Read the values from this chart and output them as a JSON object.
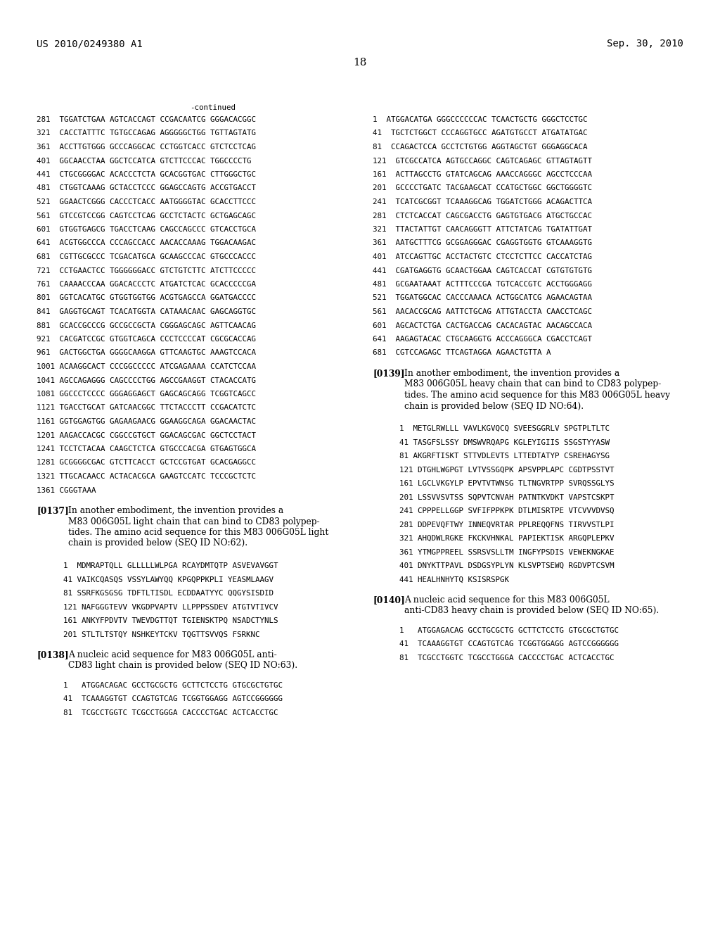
{
  "background_color": "#ffffff",
  "header_left": "US 2010/0249380 A1",
  "header_right": "Sep. 30, 2010",
  "page_number": "18",
  "continued_label": "-continued",
  "left_sequences": [
    "281  TGGATCTGAA AGTCACCAGT CCGACAATCG GGGACACGGC",
    "321  CACCTATTTC TGTGCCAGAG AGGGGGCTGG TGTTAGTATG",
    "361  ACCTTGTGGG GCCCAGGCAC CCTGGTCACC GTCTCCTCAG",
    "401  GGCAACCTAA GGCTCCATCA GTCTTCCCAC TGGCCCCTG",
    "441  CTGCGGGGAC ACACCCTCTA GCACGGTGAC CTTGGGCTGC",
    "481  CTGGTCAAAG GCTACCTCCC GGAGCCAGTG ACCGTGACCT",
    "521  GGAACTCGGG CACCCTCACC AATGGGGTAC GCACCTTCCC",
    "561  GTCCGTCCGG CAGTCCTCAG GCCTCTACTC GCTGAGCAGC",
    "601  GTGGTGAGCG TGACCTCAAG CAGCCAGCCC GTCACCTGCA",
    "641  ACGTGGCCCA CCCAGCCACC AACACCAAAG TGGACAAGAC",
    "681  CGTTGCGCCC TCGACATGCA GCAAGCCCAC GTGCCCACCC",
    "721  CCTGAACTCC TGGGGGGACC GTCTGTCTTC ATCTTCCCCC",
    "761  CAAAACCCAA GGACACCCTC ATGATCTCAC GCACCCCCGA",
    "801  GGTCACATGC GTGGTGGTGG ACGTGAGCCA GGATGACCCC",
    "841  GAGGTGCAGT TCACATGGTA CATAAACAAC GAGCAGGTGC",
    "881  GCACCGCCCG GCCGCCGCTA CGGGAGCAGC AGTTCAACAG",
    "921  CACGATCCGC GTGGTCAGCA CCCTCCCCAT CGCGCACCAG",
    "961  GACTGGCTGA GGGGCAAGGA GTTCAAGTGC AAAGTCCACA",
    "1001 ACAAGGCACT CCCGGCCCCC ATCGAGAAAA CCATCTCCAA",
    "1041 AGCCAGAGGG CAGCCCCTGG AGCCGAAGGT CTACACCATG",
    "1081 GGCCCTCCCC GGGAGGAGCT GAGCAGCAGG TCGGTCAGCC",
    "1121 TGACCTGCAT GATCAACGGC TTCTACCCTT CCGACATCTC",
    "1161 GGTGGAGTGG GAGAAGAACG GGAAGGCAGA GGACAACTAC",
    "1201 AAGACCACGC CGGCCGTGCT GGACAGCGAC GGCTCCTACT",
    "1241 TCCTCTACAA CAAGCTCTCA GTGCCCACGA GTGAGTGGCA",
    "1281 GCGGGGCGAC GTCTTCACCT GCTCCGTGAT GCACGAGGCC",
    "1321 TTGCACAACC ACTACACGCA GAAGTCCATC TCCCGCTCTC",
    "1361 CGGGTAAA"
  ],
  "right_sequences_1": [
    "1  ATGGACATGA GGGCCCCCCAC TCAACTGCTG GGGCTCCTGC",
    "41  TGCTCTGGCT CCCAGGTGCC AGATGTGCCT ATGATATGAC",
    "81  CCAGACTCCA GCCTCTGTGG AGGTAGCTGT GGGAGGCACA",
    "121  GTCGCCATCA AGTGCCAGGC CAGTCAGAGC GTTAGTAGTT",
    "161  ACTTAGCCTG GTATCAGCAG AAACCAGGGC AGCCTCCCAA",
    "201  GCCCCTGATC TACGAAGCAT CCATGCTGGC GGCTGGGGTC",
    "241  TCATCGCGGT TCAAAGGCAG TGGATCTGGG ACAGACTTCA",
    "281  CTCTCACCAT CAGCGACCTG GAGTGTGACG ATGCTGCCAC",
    "321  TTACTATTGT CAACAGGGTT ATTCTATCAG TGATATTGAT",
    "361  AATGCTTTCG GCGGAGGGAC CGAGGTGGTG GTCAAAGGTG",
    "401  ATCCAGTTGC ACCTACTGTC CTCCTCTTCC CACCATCTAG",
    "441  CGATGAGGTG GCAACTGGAA CAGTCACCAT CGTGTGTGTG",
    "481  GCGAATAAAT ACTTTCCCGA TGTCACCGTC ACCTGGGAGG",
    "521  TGGATGGCAC CACCCAAACA ACTGGCATCG AGAACAGTAA",
    "561  AACACCGCAG AATTCTGCAG ATTGTACCTA CAACCTCAGC",
    "601  AGCACTCTGA CACTGACCAG CACACAGTAC AACAGCCACA",
    "641  AAGAGTACAC CTGCAAGGTG ACCCAGGGCA CGACCTCAGT",
    "681  CGTCCAGAGC TTCAGTAGGA AGAACTGTTA A"
  ],
  "paragraph_139_title": "[0139]",
  "paragraph_139_text": "In another embodiment, the invention provides a\nM83 006G05L heavy chain that can bind to CD83 polypep-\ntides. The amino acid sequence for this M83 006G05L heavy\nchain is provided below (SEQ ID NO:64).",
  "right_seq_64": [
    "1  METGLRWLLL VAVLKGVQCQ SVEESGGRLV SPGTPLTLTC",
    "41 TASGFSLSSY DMSWVRQAPG KGLEYIGIIS SSGSTYYASW",
    "81 AKGRFTISKT STTVDLEVTS LTTEDTATYP CSREHAGYSG",
    "121 DTGHLWGPGT LVTVSSGQPK APSVPPLAPC CGDTPSSTVT",
    "161 LGCLVKGYLP EPVTVTWNSG TLTNGVRTPP SVRQSSGLYS",
    "201 LSSVVSVTSS SQPVTCNVAH PATNTKVDKT VAPSTCSKPT",
    "241 CPPPELLGGP SVFIFPPKPK DTLMISRTPE VTCVVVDVSQ",
    "281 DDPEVQFTWY INNEQVRTAR PPLREQQFNS TIRVVSTLPI",
    "321 AHQDWLRGKE FKCKVHNKAL PAPIEKTISK ARGQPLEPKV",
    "361 YTMGPPREEL SSRSVSLLTM INGFYPSDIS VEWEKNGKAE",
    "401 DNYKTTPAVL DSDGSYPLYN KLSVPTSEWQ RGDVPTCSVM",
    "441 HEALHNHYTQ KSISRSPGK"
  ],
  "paragraph_140_title": "[0140]",
  "paragraph_140_text": "A nucleic acid sequence for this M83 006G05L\nanti-CD83 heavy chain is provided below (SEQ ID NO:65).",
  "right_seq_65_start": [
    "1   ATGGAGACAG GCCTGCGCTG GCTTCTCCTG GTGCGCTGTGC",
    "41  TCAAAGGTGT CCAGTGTCAG TCGGTGGAGG AGTCCGGGGGG",
    "81  TCGCCTGGTC TCGCCTGGGA CACCCCTGAC ACTCACCTGC"
  ],
  "paragraph_137_title": "[0137]",
  "paragraph_137_text": "In another embodiment, the invention provides a\nM83 006G05L light chain that can bind to CD83 polypep-\ntides. The amino acid sequence for this M83 006G05L light\nchain is provided below (SEQ ID NO:62).",
  "left_seq_62": [
    "1  MDMRAPTQLL GLLLLLWLPGA RCAYDMTQTP ASVEVAVGGT",
    "41 VAIKCQASQS VSSYLAWYQQ KPGQPPKPLI YEASMLAAGV",
    "81 SSRFKGSGSG TDFTLTISDL ECDDAATYYC QQGYSISDID",
    "121 NAFGGGTEVV VKGDPVAPTV LLPPPSSDEV ATGTVTIVCV",
    "161 ANKYFPDVTV TWEVDGTTQT TGIENSKTPQ NSADCTYNLS",
    "201 STLTLTSTQY NSHKEYTCKV TQGTTSVVQS FSRKNC"
  ],
  "paragraph_138_title": "[0138]",
  "paragraph_138_text": "A nucleic acid sequence for M83 006G05L anti-\nCD83 light chain is provided below (SEQ ID NO:63).",
  "left_seq_63_start": [
    "1   ATGGACAGAC GCCTGCGCTG GCTTCTCCTG GTGCGCTGTGC",
    "41  TCAAAGGTGT CCAGTGTCAG TCGGTGGAGG AGTCCGGGGGG",
    "81  TCGCCTGGTC TCGCCTGGGA CACCCCTGAC ACTCACCTGC"
  ]
}
